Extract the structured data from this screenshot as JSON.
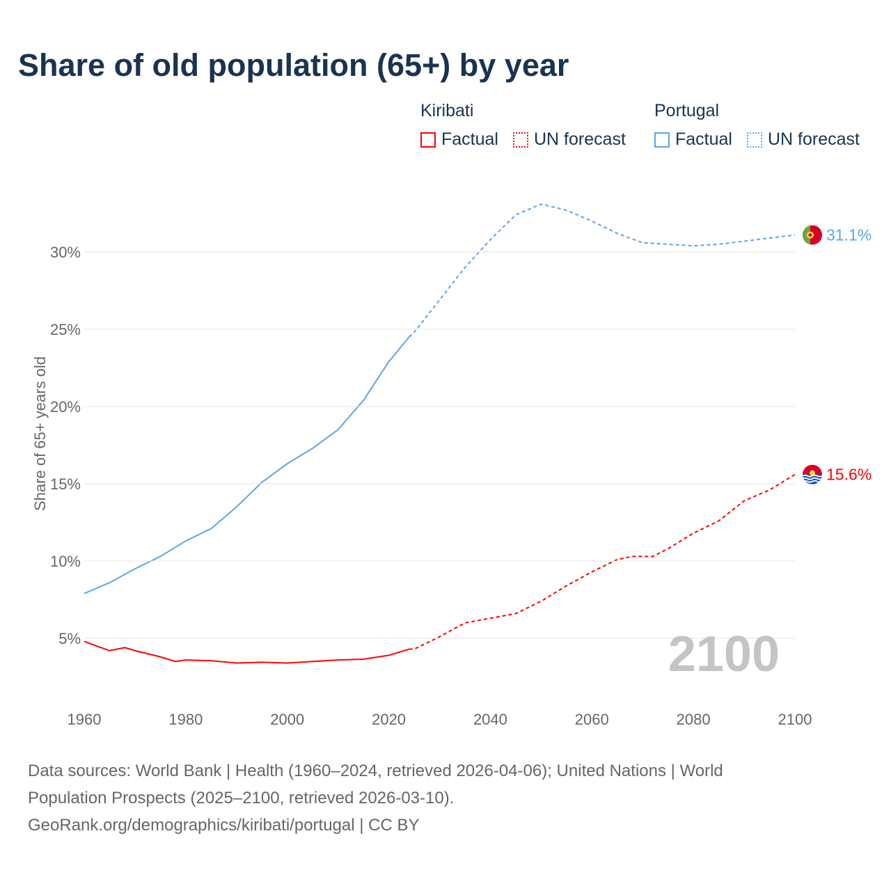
{
  "title": "Share of old population (65+) by year",
  "legend": {
    "groups": [
      {
        "country": "Kiribati",
        "color": "#ff0000",
        "factual": "Factual",
        "forecast": "UN forecast"
      },
      {
        "country": "Portugal",
        "color": "#5aa5e8",
        "factual": "Factual",
        "forecast": "UN forecast"
      }
    ]
  },
  "year_watermark": "2100",
  "footer": {
    "line1": "Data sources: World Bank | Health (1960–2024, retrieved 2026-04-06); United Nations | World",
    "line2": "Population Prospects (2025–2100, retrieved 2026-03-10).",
    "line3": "GeoRank.org/demographics/kiribati/portugal | CC BY"
  },
  "chart_data": {
    "type": "line",
    "title": "Share of old population (65+) by year",
    "xlabel": "",
    "ylabel": "Share of 65+ years old",
    "xlim": [
      1960,
      2100
    ],
    "ylim": [
      0,
      33.5
    ],
    "x_ticks": [
      "1960",
      "1980",
      "2000",
      "2020",
      "2040",
      "2060",
      "2080",
      "2100"
    ],
    "y_ticks": [
      {
        "v": 5,
        "label": "5%"
      },
      {
        "v": 10,
        "label": "10%"
      },
      {
        "v": 15,
        "label": "15%"
      },
      {
        "v": 20,
        "label": "20%"
      },
      {
        "v": 25,
        "label": "25%"
      },
      {
        "v": 30,
        "label": "30%"
      }
    ],
    "grid": true,
    "forecast_start": 2024,
    "series": [
      {
        "name": "Portugal",
        "color": "#5aa5e8",
        "end_label": "31.1%",
        "x": [
          1960,
          1965,
          1970,
          1975,
          1980,
          1985,
          1990,
          1995,
          2000,
          2005,
          2010,
          2015,
          2020,
          2024,
          2025,
          2030,
          2035,
          2040,
          2045,
          2050,
          2055,
          2060,
          2065,
          2070,
          2075,
          2080,
          2085,
          2090,
          2095,
          2100
        ],
        "y": [
          7.9,
          8.6,
          9.5,
          10.3,
          11.3,
          12.1,
          13.5,
          15.1,
          16.3,
          17.3,
          18.5,
          20.4,
          22.9,
          24.5,
          24.8,
          26.9,
          29.0,
          30.8,
          32.4,
          33.1,
          32.7,
          32.0,
          31.2,
          30.6,
          30.5,
          30.4,
          30.5,
          30.7,
          30.9,
          31.1
        ]
      },
      {
        "name": "Kiribati",
        "color": "#ff0000",
        "end_label": "15.6%",
        "x": [
          1960,
          1965,
          1968,
          1970,
          1975,
          1978,
          1980,
          1985,
          1990,
          1995,
          2000,
          2005,
          2010,
          2015,
          2020,
          2024,
          2025,
          2030,
          2035,
          2040,
          2045,
          2050,
          2055,
          2060,
          2065,
          2068,
          2072,
          2075,
          2080,
          2085,
          2090,
          2095,
          2100
        ],
        "y": [
          4.8,
          4.2,
          4.4,
          4.2,
          3.8,
          3.5,
          3.6,
          3.55,
          3.4,
          3.45,
          3.4,
          3.5,
          3.6,
          3.65,
          3.9,
          4.3,
          4.3,
          5.1,
          6.0,
          6.3,
          6.6,
          7.4,
          8.4,
          9.3,
          10.1,
          10.3,
          10.3,
          10.8,
          11.8,
          12.6,
          13.9,
          14.6,
          15.6
        ]
      }
    ]
  }
}
